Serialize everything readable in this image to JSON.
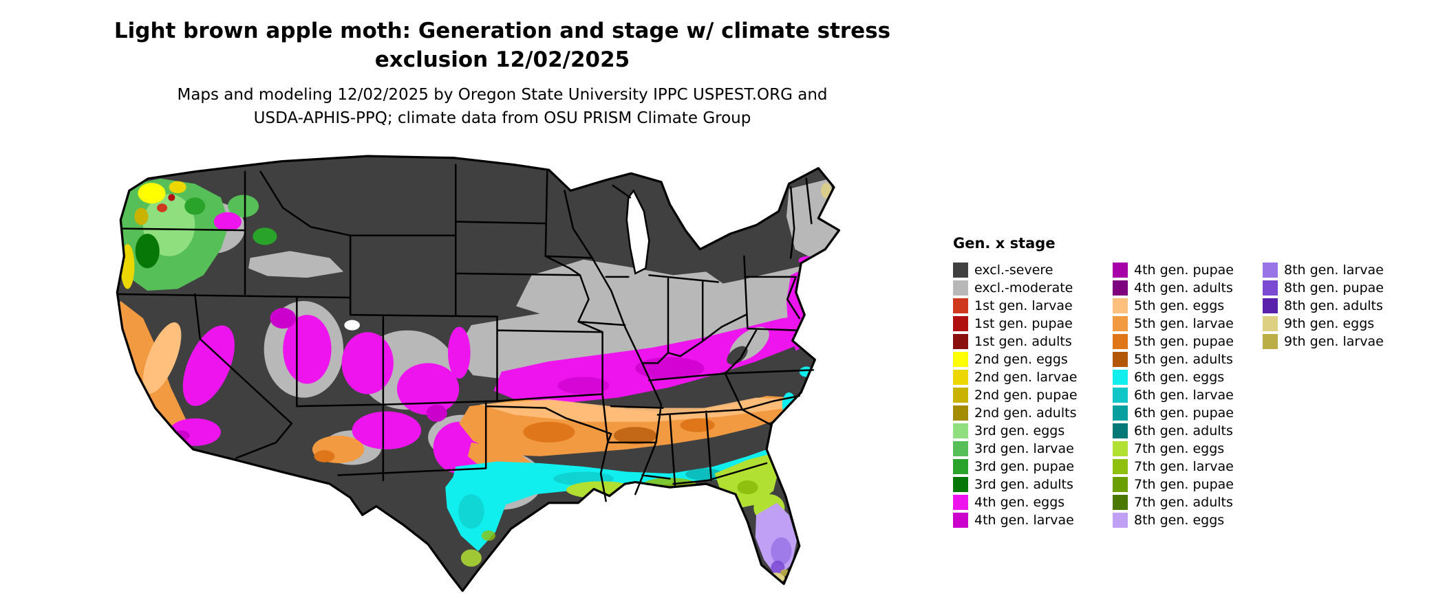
{
  "title": {
    "line1": "Light brown apple moth: Generation and stage w/ climate stress",
    "line2": "exclusion 12/02/2025"
  },
  "subtitle": {
    "line1": "Maps and modeling 12/02/2025 by Oregon State University IPPC USPEST.ORG and",
    "line2": "USDA-APHIS-PPQ; climate data from OSU PRISM Climate Group"
  },
  "legend": {
    "title": "Gen. x stage",
    "columns": [
      [
        {
          "key": "excl_severe",
          "label": "excl.-severe",
          "color": "#404040"
        },
        {
          "key": "excl_moderate",
          "label": "excl.-moderate",
          "color": "#b8b8b8"
        },
        {
          "key": "g1_larvae",
          "label": "1st gen. larvae",
          "color": "#cf3a1e"
        },
        {
          "key": "g1_pupae",
          "label": "1st gen. pupae",
          "color": "#b01010"
        },
        {
          "key": "g1_adults",
          "label": "1st gen. adults",
          "color": "#8a0f0f"
        },
        {
          "key": "g2_eggs",
          "label": "2nd gen. eggs",
          "color": "#ffff00"
        },
        {
          "key": "g2_larvae",
          "label": "2nd gen. larvae",
          "color": "#ecd800"
        },
        {
          "key": "g2_pupae",
          "label": "2nd gen. pupae",
          "color": "#c9b200"
        },
        {
          "key": "g2_adults",
          "label": "2nd gen. adults",
          "color": "#a38c00"
        },
        {
          "key": "g3_eggs",
          "label": "3rd gen. eggs",
          "color": "#8fdf7f"
        },
        {
          "key": "g3_larvae",
          "label": "3rd gen. larvae",
          "color": "#57bf57"
        },
        {
          "key": "g3_pupae",
          "label": "3rd gen. pupae",
          "color": "#2aa32a"
        },
        {
          "key": "g3_adults",
          "label": "3rd gen. adults",
          "color": "#077807"
        },
        {
          "key": "g4_eggs",
          "label": "4th gen. eggs",
          "color": "#ee14ee"
        },
        {
          "key": "g4_larvae",
          "label": "4th gen. larvae",
          "color": "#cc00cc"
        }
      ],
      [
        {
          "key": "g4_pupae",
          "label": "4th gen. pupae",
          "color": "#a800a8"
        },
        {
          "key": "g4_adults",
          "label": "4th gen. adults",
          "color": "#7e007e"
        },
        {
          "key": "g5_eggs",
          "label": "5th gen. eggs",
          "color": "#ffc07e"
        },
        {
          "key": "g5_larvae",
          "label": "5th gen. larvae",
          "color": "#f29a42"
        },
        {
          "key": "g5_pupae",
          "label": "5th gen. pupae",
          "color": "#e0761a"
        },
        {
          "key": "g5_adults",
          "label": "5th gen. adults",
          "color": "#b25708"
        },
        {
          "key": "g6_eggs",
          "label": "6th gen. eggs",
          "color": "#10eeee"
        },
        {
          "key": "g6_larvae",
          "label": "6th gen. larvae",
          "color": "#10c6c6"
        },
        {
          "key": "g6_pupae",
          "label": "6th gen. pupae",
          "color": "#0a9f9f"
        },
        {
          "key": "g6_adults",
          "label": "6th gen. adults",
          "color": "#077878"
        },
        {
          "key": "g7_eggs",
          "label": "7th gen. eggs",
          "color": "#b2e032"
        },
        {
          "key": "g7_larvae",
          "label": "7th gen. larvae",
          "color": "#8fc010"
        },
        {
          "key": "g7_pupae",
          "label": "7th gen. pupae",
          "color": "#6b9f00"
        },
        {
          "key": "g7_adults",
          "label": "7th gen. adults",
          "color": "#4a7800"
        },
        {
          "key": "g8_eggs",
          "label": "8th gen. eggs",
          "color": "#bfa0f5"
        }
      ],
      [
        {
          "key": "g8_larvae",
          "label": "8th gen. larvae",
          "color": "#9874e6"
        },
        {
          "key": "g8_pupae",
          "label": "8th gen. pupae",
          "color": "#7a4ad2"
        },
        {
          "key": "g8_adults",
          "label": "8th gen. adults",
          "color": "#5a22aa"
        },
        {
          "key": "g9_eggs",
          "label": "9th gen. eggs",
          "color": "#ded083"
        },
        {
          "key": "g9_larvae",
          "label": "9th gen. larvae",
          "color": "#bcae46"
        }
      ]
    ]
  }
}
